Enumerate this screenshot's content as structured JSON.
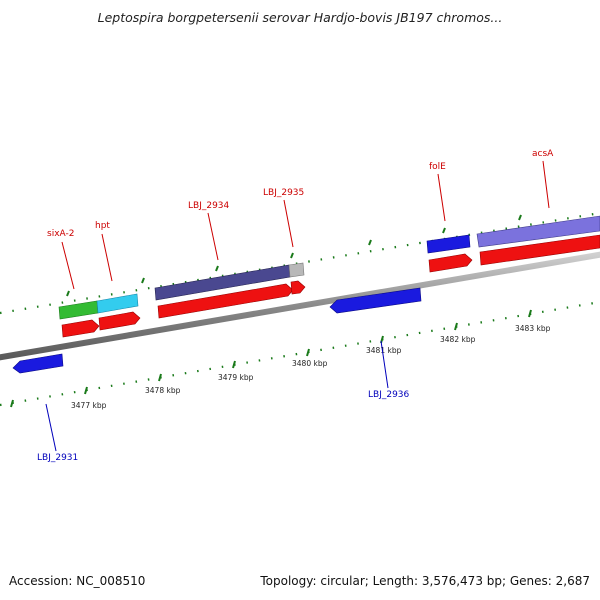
{
  "title": "Leptospira borgpetersenii serovar Hardjo-bovis JB197 chromos...",
  "footer": {
    "accession": "Accession: NC_008510",
    "summary": "Topology: circular; Length: 3,576,473 bp; Genes: 2,687"
  },
  "colors": {
    "forward_label": "#cc0000",
    "reverse_label": "#0000bb",
    "cds_red": "#ee1111",
    "gene_blue": "#1a1adf",
    "gene_green": "#33bb33",
    "gene_cyan": "#33ccee",
    "gene_navy": "#4a4890",
    "gene_lavender": "#7b72dd",
    "gene_gray": "#b8b8b8",
    "backbone": "#8a8a8a",
    "ticks": "#1a7a1a"
  },
  "scale_labels": [
    "3477 kbp",
    "3478 kbp",
    "3479 kbp",
    "3480 kbp",
    "3481 kbp",
    "3482 kbp",
    "3483 kbp"
  ],
  "forward_labels": [
    "sixA-2",
    "hpt",
    "LBJ_2934",
    "LBJ_2935",
    "folE",
    "acsA"
  ],
  "reverse_labels": [
    "LBJ_2931",
    "LBJ_2936"
  ]
}
